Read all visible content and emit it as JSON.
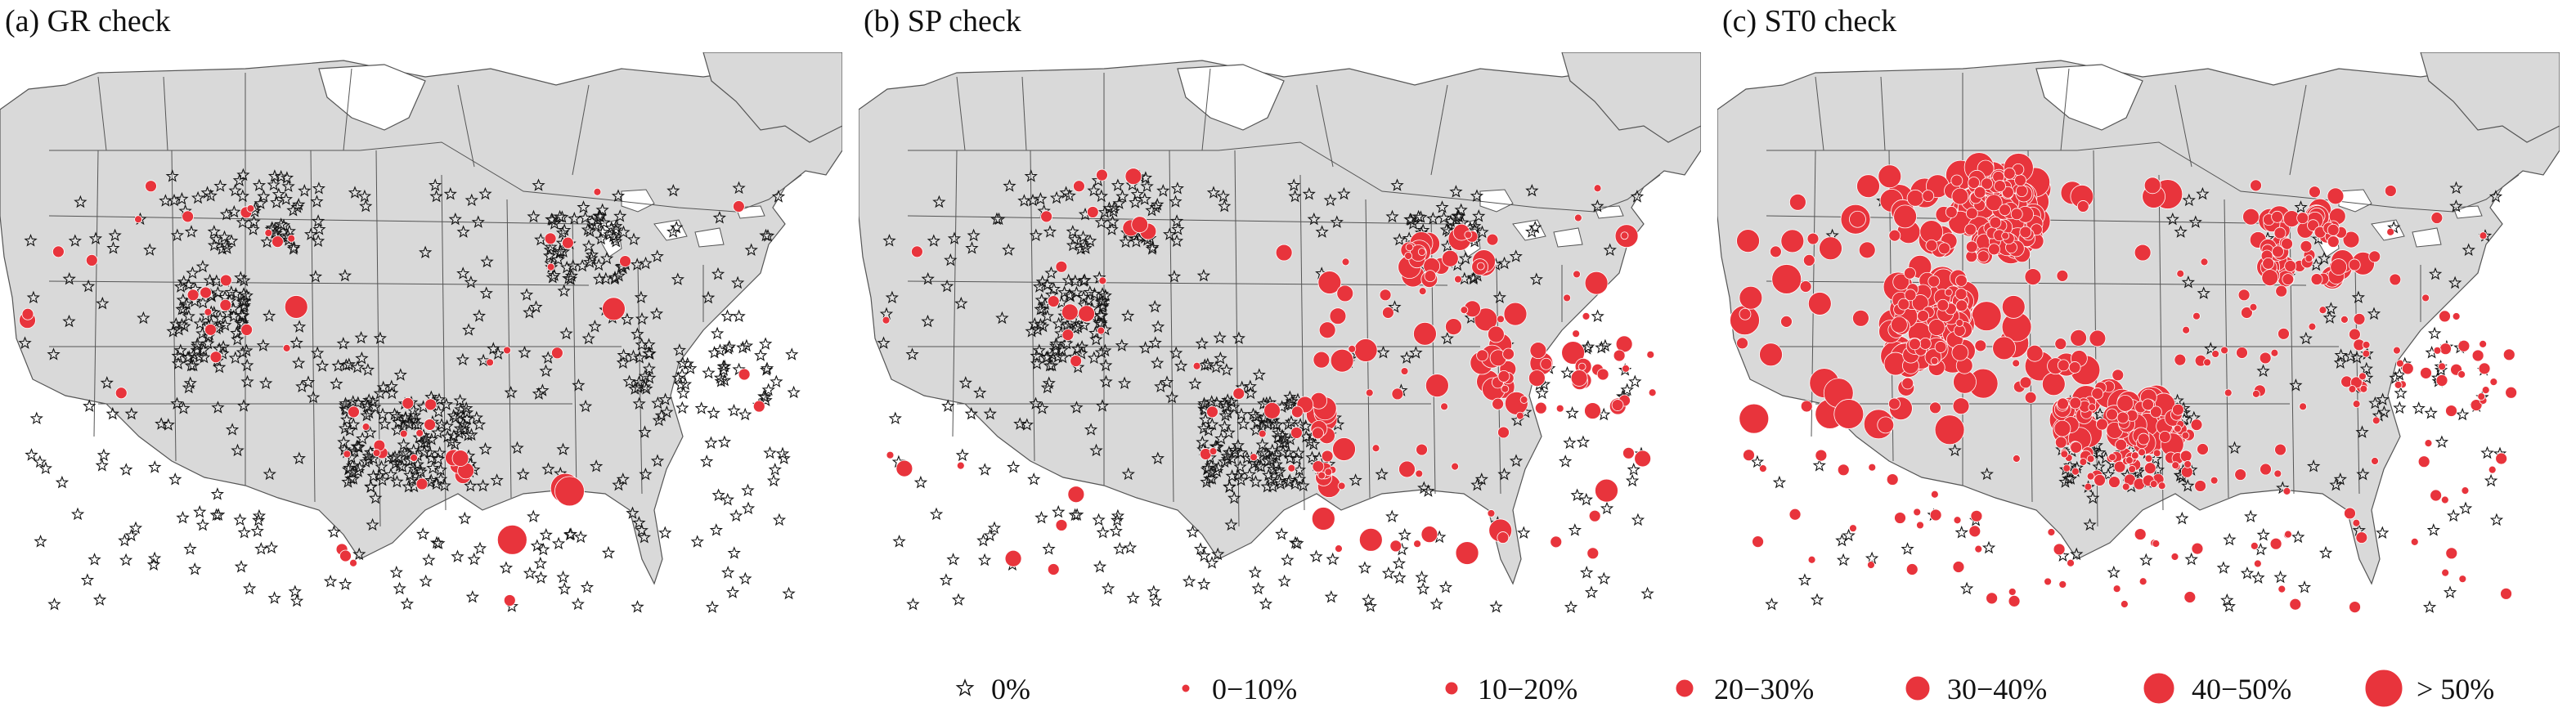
{
  "panels": [
    {
      "id": "gr",
      "title": "(a) GR check"
    },
    {
      "id": "sp",
      "title": "(b) SP check"
    },
    {
      "id": "st0",
      "title": "(c) ST0 check"
    }
  ],
  "legend": [
    {
      "label": "0%",
      "symbol": "star-marker-icon"
    },
    {
      "label": "0−10%",
      "symbol": "circle-marker-icon"
    },
    {
      "label": "10−20%",
      "symbol": "circle-marker-icon"
    },
    {
      "label": "20−30%",
      "symbol": "circle-marker-icon"
    },
    {
      "label": "30−40%",
      "symbol": "circle-marker-icon"
    },
    {
      "label": "40−50%",
      "symbol": "circle-marker-icon"
    },
    {
      "label": "> 50%",
      "symbol": "circle-marker-icon"
    }
  ],
  "colors": {
    "land": "#d9d9d9",
    "border": "#555555",
    "water": "#ffffff",
    "marker_fill": "#e8343c",
    "marker_stroke": "#ffffff",
    "star_stroke": "#111111"
  }
}
